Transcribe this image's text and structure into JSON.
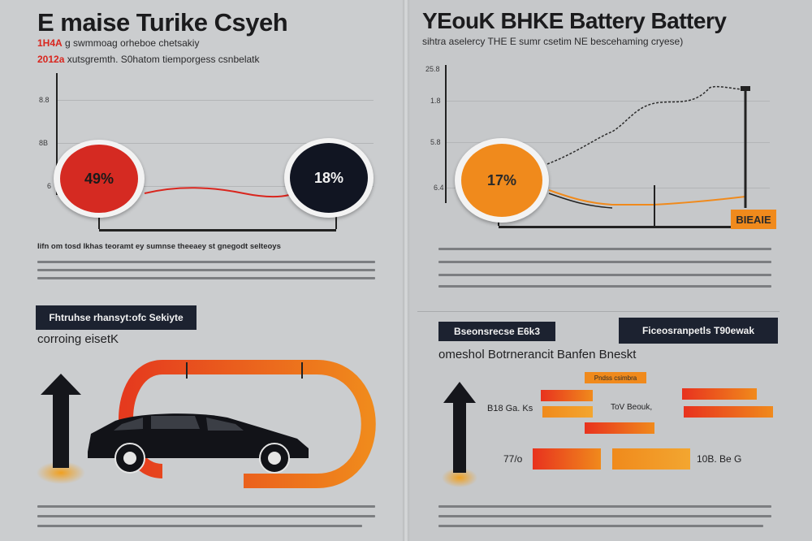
{
  "left": {
    "title": "E maise Turike Csyeh",
    "subtitle_red_1": "1H4A",
    "subtitle_1": "g swmmoag orheboe chetsakiy",
    "subtitle_red_2": "2012a",
    "subtitle_2": "xutsgremth. S0hatom tiemporgess csnbelatk",
    "y_ticks": [
      "8.8",
      "8B",
      "6"
    ],
    "circle_red_value": "49%",
    "circle_dark_value": "18%",
    "paragraph_heading": "Iifn om tosd Ikhas teoramt ey sumnse theeaey st gnegodt selteoys",
    "dark_box_label": "Fhtruhse rhansyt:ofc Sekiyte",
    "section_heading": "corroing eisetK"
  },
  "right": {
    "title": "YEouK BHKE Battery Battery",
    "subtitle": "sihtra aselercy THE E sumr csetim NE bescehaming cryese)",
    "y_ticks": [
      "25.8",
      "1.8",
      "5.8",
      "6.4"
    ],
    "circle_orange_value": "17%",
    "badge_label": "BIEAIE",
    "dark_box_1": "Bseonsrecse E6k3",
    "dark_box_2": "Ficeosranpetls T90ewak",
    "section_heading": "omeshol Botrnerancit Banfen Bneskt",
    "bar_header": "Pndss csimbra",
    "row_label_1": "B18 Ga. Ks",
    "row_label_2": "ToV Beouk,",
    "row_label_3": "77/o",
    "row_label_4": "10B. Be G"
  },
  "colors": {
    "red": "#d9261e",
    "orange": "#f08a1c",
    "dark": "#1c2230",
    "background": "#cbcdcf"
  },
  "icons": [
    "up-arrow-icon",
    "car-icon"
  ]
}
